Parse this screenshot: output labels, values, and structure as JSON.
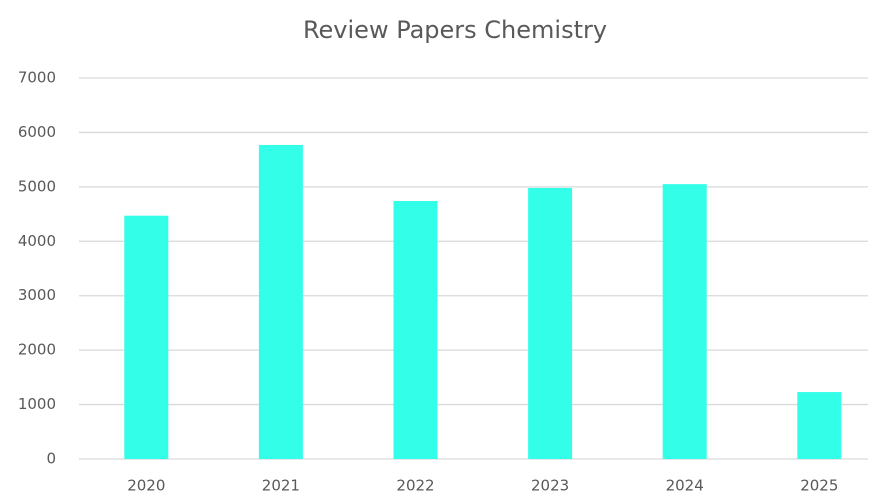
{
  "chart_data": {
    "type": "bar",
    "title": "Review Papers Chemistry",
    "categories": [
      "2020",
      "2021",
      "2022",
      "2023",
      "2024",
      "2025"
    ],
    "values": [
      4470,
      5770,
      4740,
      4980,
      5050,
      1230
    ],
    "color": "#33ffe8",
    "ylim": [
      0,
      7000
    ],
    "yticks": [
      0,
      1000,
      2000,
      3000,
      4000,
      5000,
      6000,
      7000
    ],
    "grid": true
  }
}
